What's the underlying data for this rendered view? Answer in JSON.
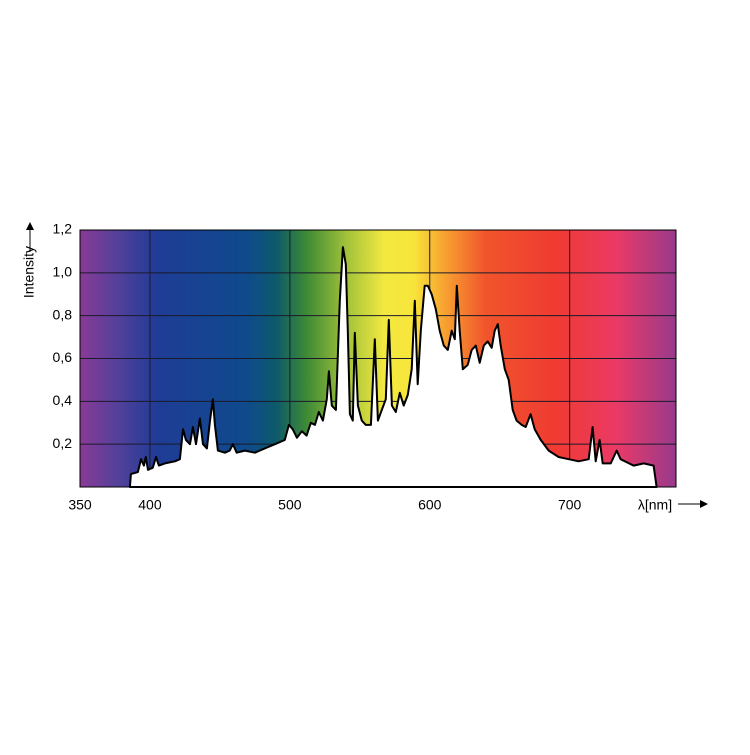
{
  "chart_data": {
    "type": "area",
    "x_label": "λ[nm]",
    "y_label": "Intensity",
    "xlim": [
      350,
      776
    ],
    "ylim": [
      0,
      1.2
    ],
    "xticks": [
      350,
      400,
      500,
      600,
      700
    ],
    "yticks": [
      {
        "value": 0.2,
        "label": "0,2"
      },
      {
        "value": 0.4,
        "label": "0,4"
      },
      {
        "value": 0.6,
        "label": "0,6"
      },
      {
        "value": 0.8,
        "label": "0,8"
      },
      {
        "value": 1.0,
        "label": "1,0"
      },
      {
        "value": 1.2,
        "label": "1,2"
      }
    ],
    "grid": true,
    "color": "#ffffff",
    "line_color": "#000000",
    "x": [
      385.7,
      386.4,
      391.4,
      393.6,
      395.7,
      397,
      398.6,
      402,
      404.3,
      406.4,
      410.7,
      417.9,
      421.4,
      423.6,
      425.7,
      428.6,
      430.7,
      432.9,
      435.7,
      437.9,
      440.7,
      442.9,
      445,
      446.4,
      448.6,
      453.6,
      457,
      459.3,
      462,
      467.9,
      475,
      482,
      489.3,
      496.4,
      499.3,
      502,
      505,
      508.6,
      512,
      515,
      517.9,
      520.7,
      523.6,
      526.4,
      527.9,
      530,
      532.9,
      535.7,
      537.9,
      540,
      541.4,
      542.9,
      545,
      546.4,
      548.6,
      551.4,
      554.3,
      557.9,
      560.7,
      562.9,
      565.7,
      568.6,
      570.7,
      572.9,
      575.7,
      578.6,
      581.4,
      584.3,
      587.1,
      589.3,
      591.4,
      593.6,
      596.4,
      598.6,
      601.4,
      604.3,
      607.1,
      610,
      612.9,
      615.7,
      617.9,
      619.3,
      621.4,
      623.6,
      627.1,
      630,
      632.9,
      635.7,
      638.6,
      641.4,
      644.3,
      646.4,
      648.6,
      650.7,
      653.6,
      656.4,
      659.3,
      662.1,
      665.7,
      668.6,
      672.1,
      675,
      679.3,
      685,
      692.1,
      699.3,
      706.4,
      713.6,
      716.4,
      718.6,
      721.4,
      723.6,
      729.3,
      733.6,
      736.4,
      745.7,
      752.9,
      760,
      762.1
    ],
    "values": [
      0,
      0.06,
      0.07,
      0.13,
      0.1,
      0.14,
      0.08,
      0.09,
      0.14,
      0.1,
      0.11,
      0.12,
      0.13,
      0.27,
      0.22,
      0.2,
      0.28,
      0.2,
      0.32,
      0.2,
      0.18,
      0.31,
      0.41,
      0.29,
      0.17,
      0.16,
      0.17,
      0.2,
      0.16,
      0.17,
      0.16,
      0.18,
      0.2,
      0.22,
      0.29,
      0.27,
      0.23,
      0.26,
      0.24,
      0.3,
      0.29,
      0.35,
      0.31,
      0.41,
      0.54,
      0.38,
      0.36,
      0.87,
      1.12,
      1.04,
      0.73,
      0.34,
      0.31,
      0.72,
      0.38,
      0.31,
      0.29,
      0.29,
      0.69,
      0.31,
      0.36,
      0.41,
      0.78,
      0.38,
      0.35,
      0.44,
      0.38,
      0.43,
      0.55,
      0.87,
      0.48,
      0.73,
      0.94,
      0.94,
      0.9,
      0.83,
      0.73,
      0.66,
      0.64,
      0.73,
      0.69,
      0.94,
      0.73,
      0.55,
      0.57,
      0.64,
      0.66,
      0.58,
      0.66,
      0.68,
      0.65,
      0.73,
      0.76,
      0.66,
      0.55,
      0.5,
      0.36,
      0.31,
      0.29,
      0.28,
      0.34,
      0.27,
      0.22,
      0.17,
      0.14,
      0.13,
      0.12,
      0.13,
      0.28,
      0.12,
      0.22,
      0.11,
      0.11,
      0.17,
      0.13,
      0.1,
      0.11,
      0.1,
      0
    ]
  }
}
